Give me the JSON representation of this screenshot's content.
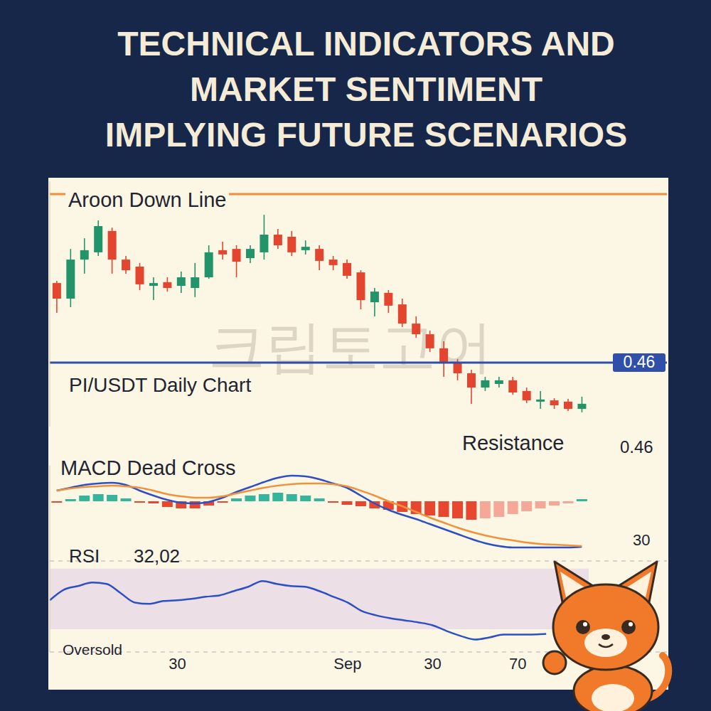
{
  "header": {
    "title_lines": [
      "TECHNICAL INDICATORS AND",
      "MARKET SENTIMENT",
      "IMPLYING FUTURE SCENARIOS"
    ]
  },
  "watermark": "크립토고어",
  "chart_data": [
    {
      "type": "candlestick",
      "title": "PI/USDT Daily Chart",
      "categories": [
        null,
        null,
        null,
        null,
        null,
        null,
        null,
        null,
        null,
        "30",
        null,
        null,
        null,
        null,
        null,
        null,
        null,
        null,
        null,
        null,
        null,
        "Sep",
        null,
        null,
        null,
        null,
        null,
        "30",
        null,
        null,
        null,
        null,
        null,
        "70",
        null,
        null,
        null,
        null,
        null
      ],
      "open": [
        0.4973,
        0.49,
        0.5083,
        0.5117,
        0.5217,
        0.5083,
        0.505,
        0.496,
        0.4977,
        0.496,
        0.495,
        0.5,
        0.5127,
        0.5133,
        0.509,
        0.5117,
        0.52,
        0.519,
        0.5127,
        0.5133,
        0.5083,
        0.5067,
        0.5023,
        0.4883,
        0.4927,
        0.4873,
        0.4783,
        0.4733,
        0.4667,
        0.46,
        0.455,
        0.4483,
        0.45,
        0.4517,
        0.4467,
        0.4417,
        0.4423,
        0.4417,
        0.4383
      ],
      "high": [
        0.4983,
        0.5133,
        0.5183,
        0.5267,
        0.5233,
        0.51,
        0.5067,
        0.5,
        0.5,
        0.5027,
        0.5067,
        0.515,
        0.5167,
        0.515,
        0.515,
        0.5293,
        0.5227,
        0.5217,
        0.5173,
        0.515,
        0.51,
        0.5083,
        0.5033,
        0.495,
        0.494,
        0.49,
        0.4817,
        0.475,
        0.47,
        0.4617,
        0.4567,
        0.4533,
        0.4533,
        0.4533,
        0.4483,
        0.4467,
        0.4433,
        0.443,
        0.444
      ],
      "low": [
        0.4833,
        0.486,
        0.5017,
        0.51,
        0.5017,
        0.5017,
        0.494,
        0.4893,
        0.4933,
        0.4927,
        0.4907,
        0.4993,
        0.5083,
        0.5,
        0.5067,
        0.5083,
        0.5133,
        0.51,
        0.5107,
        0.5033,
        0.5033,
        0.4993,
        0.485,
        0.4817,
        0.4833,
        0.4767,
        0.4717,
        0.465,
        0.4533,
        0.4517,
        0.4407,
        0.4467,
        0.4483,
        0.445,
        0.441,
        0.4383,
        0.4383,
        0.4373,
        0.4367
      ],
      "close": [
        0.49,
        0.5083,
        0.5127,
        0.524,
        0.5083,
        0.5033,
        0.4967,
        0.4973,
        0.495,
        0.5,
        0.5,
        0.5117,
        0.5107,
        0.5073,
        0.5133,
        0.52,
        0.515,
        0.5117,
        0.5143,
        0.5077,
        0.5057,
        0.5007,
        0.4893,
        0.4933,
        0.4867,
        0.4783,
        0.4733,
        0.4667,
        0.46,
        0.455,
        0.4483,
        0.4517,
        0.4517,
        0.446,
        0.4423,
        0.4427,
        0.44,
        0.4383,
        0.4407
      ],
      "aroon_down": {
        "name": "Aroon Down Line",
        "value": 0.539,
        "color": "#f08c3a"
      },
      "resistance": {
        "name": "Resistance",
        "value": 0.46,
        "color": "#2f4fa8"
      },
      "ylim": [
        0.43,
        0.545
      ],
      "yticks": [],
      "grid": false,
      "tick_labels": false
    },
    {
      "type": "line",
      "title": "MACD Dead Cross",
      "categories": [
        null,
        null,
        null,
        null,
        null,
        null,
        null,
        null,
        null,
        "30",
        null,
        null,
        null,
        null,
        null,
        null,
        null,
        null,
        null,
        null,
        null,
        "Sep",
        null,
        null,
        null,
        null,
        null,
        "30",
        null,
        null,
        null,
        null,
        null,
        "70",
        null,
        null,
        null,
        null,
        null
      ],
      "series": [
        {
          "type": "bar",
          "colors": [
            "#e8472f",
            "#35b59b",
            "#35b59b",
            "#35b59b",
            "#35b59b",
            "#35b59b",
            "#e8472f",
            "#e8472f",
            "#e8472f",
            "#e8472f",
            "#e8472f",
            "#e8472f",
            "#e8472f",
            "#35b59b",
            "#35b59b",
            "#35b59b",
            "#35b59b",
            "#35b59b",
            "#35b59b",
            "#35b59b",
            "#e8472f",
            "#e8472f",
            "#e8472f",
            "#e8472f",
            "#e8472f",
            "#e8472f",
            "#e8472f",
            "#e8472f",
            "#e8472f",
            "#e8472f",
            "#e8472f",
            "#f5a898",
            "#f5a898",
            "#f5a898",
            "#f5a898",
            "#f5a898",
            "#f5a898",
            "#f5a898",
            "#35b59b"
          ],
          "values": [
            -0.0002,
            0.0003,
            0.0008,
            0.001,
            0.0009,
            0.0004,
            -0.0002,
            -0.0003,
            -0.0008,
            -0.001,
            -0.001,
            -0.0006,
            -0.0002,
            0.0004,
            0.0008,
            0.001,
            0.0012,
            0.001,
            0.0008,
            0.0004,
            -0.0002,
            -0.0005,
            -0.0007,
            -0.001,
            -0.0012,
            -0.0015,
            -0.0018,
            -0.002,
            -0.0022,
            -0.0024,
            -0.0026,
            -0.0024,
            -0.0022,
            -0.0018,
            -0.0014,
            -0.001,
            -0.0006,
            -0.0003,
            0.0003
          ]
        },
        {
          "type": "line",
          "color": "#2d4fc4",
          "values": [
            0.0015,
            0.0019,
            0.0023,
            0.0025,
            0.0026,
            0.0023,
            0.0015,
            0.0008,
            0.0002,
            -0.0002,
            -0.0003,
            -0.0001,
            0.0005,
            0.0013,
            0.002,
            0.0027,
            0.0033,
            0.0036,
            0.0035,
            0.0031,
            0.0025,
            0.0019,
            0.0008,
            -0.0003,
            -0.0012,
            -0.0019,
            -0.0025,
            -0.0032,
            -0.0039,
            -0.0046,
            -0.0053,
            -0.0059,
            -0.0063,
            -0.0065,
            -0.0065,
            -0.0065,
            -0.0065,
            -0.0065,
            -0.0064
          ]
        },
        {
          "type": "line",
          "color": "#f0913c",
          "values": [
            0.0015,
            0.0018,
            0.002,
            0.0021,
            0.0022,
            0.0021,
            0.0019,
            0.0015,
            0.001,
            0.0007,
            0.0005,
            0.0005,
            0.0007,
            0.0011,
            0.0015,
            0.0019,
            0.0022,
            0.0024,
            0.0025,
            0.0025,
            0.0024,
            0.0021,
            0.0015,
            0.0008,
            0,
            -0.0007,
            -0.0015,
            -0.0023,
            -0.003,
            -0.0037,
            -0.0043,
            -0.0048,
            -0.0052,
            -0.0055,
            -0.0058,
            -0.006,
            -0.0061,
            -0.0062,
            -0.0063
          ]
        }
      ],
      "annotations": [
        "30"
      ],
      "ylim": [
        -0.0085,
        0.005
      ],
      "yticks": [],
      "grid": false,
      "tick_labels": false
    },
    {
      "type": "line",
      "title": "RSI",
      "subtitle": "32,02",
      "categories": [
        null,
        null,
        null,
        null,
        null,
        null,
        null,
        null,
        null,
        "30",
        null,
        null,
        null,
        null,
        null,
        null,
        null,
        null,
        null,
        null,
        null,
        "Sep",
        null,
        null,
        null,
        null,
        null,
        "30",
        null,
        null,
        null,
        null,
        null,
        "70",
        null,
        null,
        null,
        null,
        null
      ],
      "series": [
        {
          "color": "#2d4fc4",
          "values": [
            49.1,
            56.1,
            58.5,
            60.8,
            59.9,
            53.8,
            47.6,
            46.7,
            48.6,
            49.1,
            50,
            51.4,
            52.4,
            55.2,
            58,
            61.8,
            59.9,
            58.5,
            58,
            55.2,
            51.4,
            47.6,
            42,
            39.2,
            37.3,
            35.9,
            34.5,
            32.6,
            28.8,
            25.5,
            23.2,
            24.6,
            26.5,
            26.5,
            26.5,
            26.9,
            null,
            null,
            null
          ]
        }
      ],
      "band": [
        30,
        70
      ],
      "annotations": [
        "Oversold"
      ],
      "ylim": [
        15,
        75
      ],
      "yticks": [
        30,
        50,
        70
      ],
      "grid": true,
      "tick_labels": "x"
    }
  ]
}
